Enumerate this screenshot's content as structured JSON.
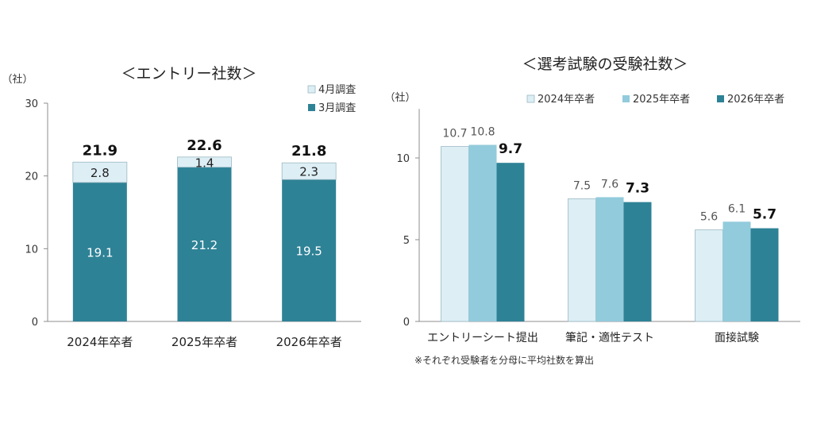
{
  "chart_data": [
    {
      "type": "bar",
      "stacked": true,
      "title": "＜エントリー社数＞",
      "ylabel": "（社）",
      "ylim": [
        0,
        30
      ],
      "yticks": [
        0,
        10,
        20,
        30
      ],
      "grid": false,
      "legend_position": "top-right",
      "categories": [
        "2024年卒者",
        "2025年卒者",
        "2026年卒者"
      ],
      "series": [
        {
          "name": "3月調査",
          "values": [
            19.1,
            21.2,
            19.5
          ],
          "color": "#2e8296"
        },
        {
          "name": "4月調査",
          "values": [
            2.8,
            1.4,
            2.3
          ],
          "color": "#ddeef5"
        }
      ],
      "totals": [
        21.9,
        22.6,
        21.8
      ],
      "value_labels": {
        "3月調査": [
          "19.1",
          "21.2",
          "19.5"
        ],
        "4月調査": [
          "2.8",
          "1.4",
          "2.3"
        ],
        "totals": [
          "21.9",
          "22.6",
          "21.8"
        ]
      },
      "legend_labels": [
        "4月調査",
        "3月調査"
      ]
    },
    {
      "type": "bar",
      "stacked": false,
      "title": "＜選考試験の受験社数＞",
      "ylabel": "（社）",
      "ylim": [
        0,
        13
      ],
      "yticks": [
        0,
        5,
        10
      ],
      "grid": false,
      "legend_position": "top",
      "categories": [
        "エントリーシート提出",
        "筆記・適性テスト",
        "面接試験"
      ],
      "series": [
        {
          "name": "2024年卒者",
          "values": [
            10.7,
            7.5,
            5.6
          ],
          "color": "#ddeef5"
        },
        {
          "name": "2025年卒者",
          "values": [
            10.8,
            7.6,
            6.1
          ],
          "color": "#92cbdc"
        },
        {
          "name": "2026年卒者",
          "values": [
            9.7,
            7.3,
            5.7
          ],
          "color": "#2e8296"
        }
      ],
      "value_labels": [
        [
          "10.7",
          "10.8",
          "9.7"
        ],
        [
          "7.5",
          "7.6",
          "7.3"
        ],
        [
          "5.6",
          "6.1",
          "5.7"
        ]
      ],
      "note": "※それぞれ受験者を分母に平均社数を算出"
    }
  ],
  "colors": {
    "dark": "#2e8296",
    "medium": "#92cbdc",
    "light": "#ddeef5",
    "bar_stroke": "#9bb8c2",
    "axis": "#8c8c8c",
    "text": "#333333"
  }
}
